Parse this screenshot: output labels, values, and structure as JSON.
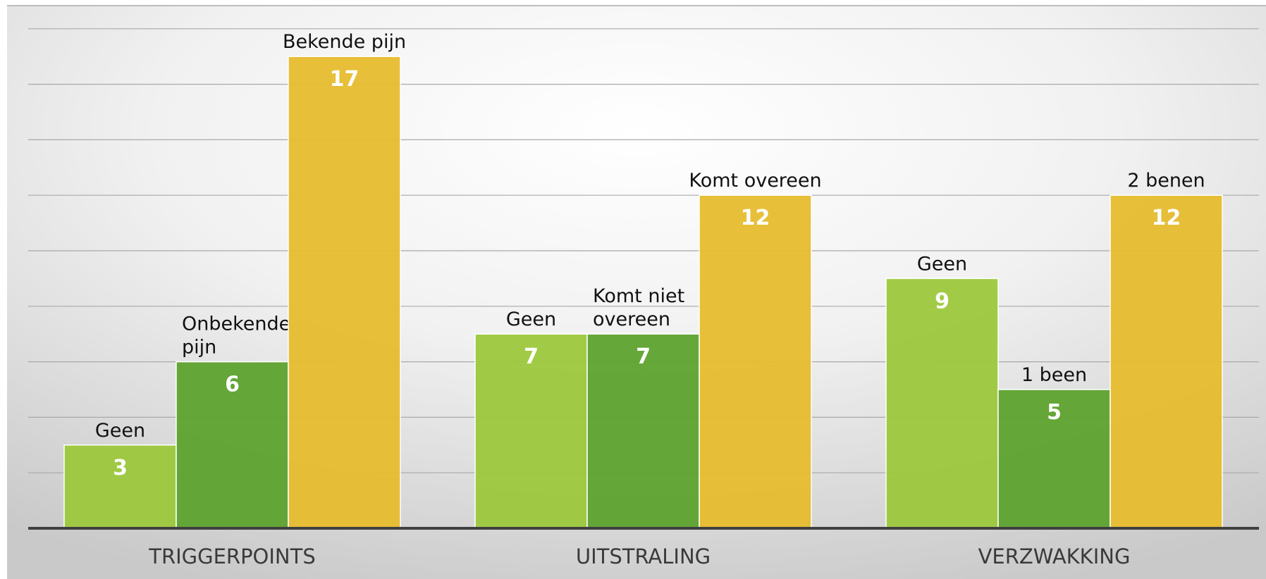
{
  "chart_data": {
    "type": "bar",
    "ylim": [
      0,
      18
    ],
    "grid": true,
    "title": "",
    "xlabel": "",
    "ylabel": "",
    "groups": [
      {
        "category": "TRIGGERPOINTS",
        "bars": [
          {
            "label": "Geen",
            "value": 3,
            "color": "#9cc83c"
          },
          {
            "label": "Onbekende pijn",
            "value": 6,
            "color": "#5ea22e"
          },
          {
            "label": "Bekende pijn",
            "value": 17,
            "color": "#e6bc2e"
          }
        ]
      },
      {
        "category": "UITSTRALING",
        "bars": [
          {
            "label": "Geen",
            "value": 7,
            "color": "#9cc83c"
          },
          {
            "label": "Komt niet overeen",
            "value": 7,
            "color": "#5ea22e"
          },
          {
            "label": "Komt overeen",
            "value": 12,
            "color": "#e6bc2e"
          }
        ]
      },
      {
        "category": "VERZWAKKING",
        "bars": [
          {
            "label": "Geen",
            "value": 9,
            "color": "#9cc83c"
          },
          {
            "label": "1 been",
            "value": 5,
            "color": "#5ea22e"
          },
          {
            "label": "2 benen",
            "value": 12,
            "color": "#e6bc2e"
          }
        ]
      }
    ]
  }
}
